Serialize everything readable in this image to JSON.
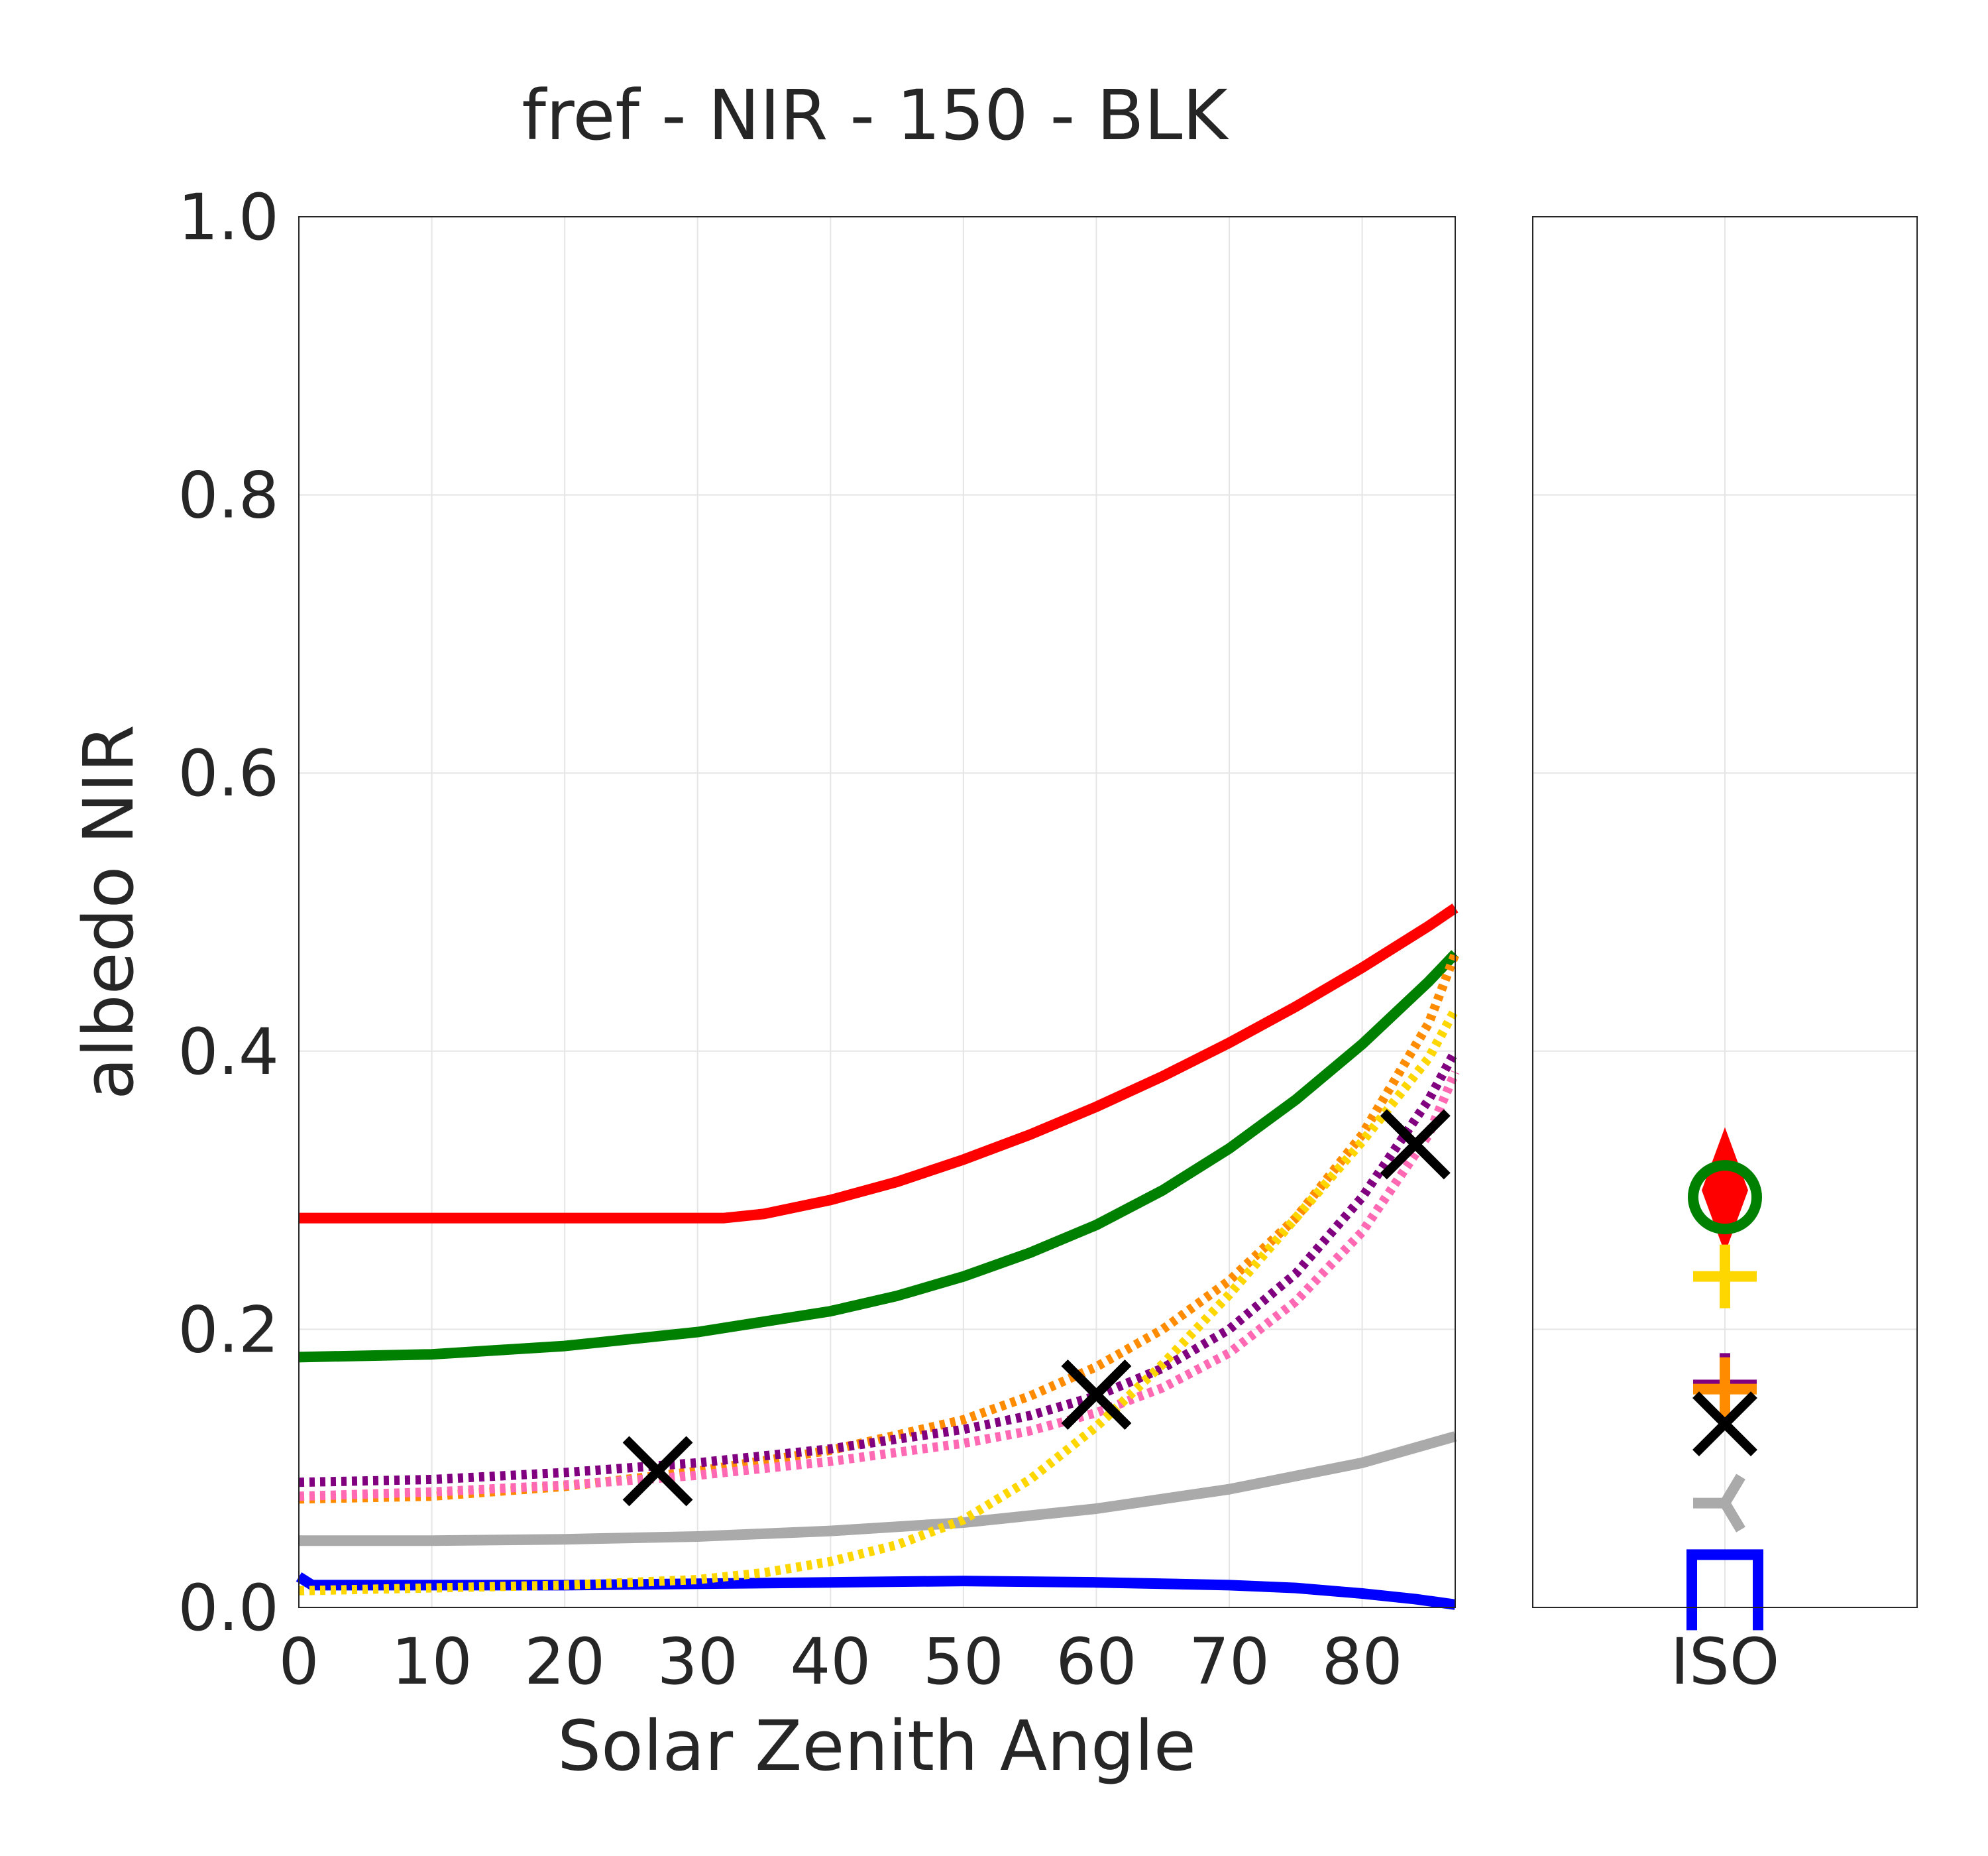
{
  "chart_data": [
    {
      "type": "line",
      "title": "fref - NIR - 150 - BLK",
      "xlabel": "Solar Zenith Angle",
      "ylabel": "albedo NIR",
      "xlim": [
        0,
        87
      ],
      "ylim": [
        0,
        1
      ],
      "xticks": [
        "0",
        "10",
        "20",
        "30",
        "40",
        "50",
        "60",
        "70",
        "80"
      ],
      "yticks": [
        "0.0",
        "0.2",
        "0.4",
        "0.6",
        "0.8",
        "1.0"
      ],
      "grid": true,
      "series": [
        {
          "color": "#ff0000",
          "style": "solid",
          "x": [
            0,
            10,
            20,
            30,
            32,
            35,
            40,
            45,
            50,
            55,
            60,
            65,
            70,
            75,
            80,
            85,
            87
          ],
          "y": [
            0.28,
            0.28,
            0.28,
            0.28,
            0.28,
            0.283,
            0.293,
            0.306,
            0.322,
            0.34,
            0.36,
            0.382,
            0.406,
            0.432,
            0.46,
            0.49,
            0.503
          ]
        },
        {
          "color": "#008000",
          "style": "solid",
          "x": [
            0,
            10,
            20,
            30,
            40,
            45,
            50,
            55,
            60,
            65,
            70,
            75,
            80,
            85,
            87
          ],
          "y": [
            0.18,
            0.182,
            0.188,
            0.198,
            0.213,
            0.224,
            0.238,
            0.255,
            0.275,
            0.3,
            0.33,
            0.365,
            0.405,
            0.45,
            0.47
          ]
        },
        {
          "color": "#aaaaaa",
          "style": "solid",
          "x": [
            0,
            10,
            20,
            30,
            40,
            50,
            60,
            70,
            80,
            87
          ],
          "y": [
            0.048,
            0.048,
            0.049,
            0.051,
            0.055,
            0.061,
            0.071,
            0.085,
            0.104,
            0.123
          ]
        },
        {
          "color": "#0000ff",
          "style": "solid",
          "x": [
            0,
            1,
            10,
            20,
            30,
            40,
            50,
            60,
            70,
            75,
            80,
            84,
            87
          ],
          "y": [
            0.022,
            0.016,
            0.016,
            0.016,
            0.017,
            0.018,
            0.019,
            0.018,
            0.016,
            0.014,
            0.01,
            0.006,
            0.002
          ]
        },
        {
          "color": "#ff8c00",
          "style": "dotted",
          "x": [
            0,
            10,
            20,
            30,
            40,
            50,
            55,
            60,
            65,
            70,
            75,
            80,
            85,
            87
          ],
          "y": [
            0.078,
            0.08,
            0.087,
            0.098,
            0.113,
            0.135,
            0.152,
            0.173,
            0.2,
            0.235,
            0.28,
            0.34,
            0.42,
            0.47
          ]
        },
        {
          "color": "#800080",
          "style": "dotted",
          "x": [
            0,
            10,
            20,
            30,
            40,
            50,
            55,
            60,
            65,
            70,
            75,
            80,
            85,
            87
          ],
          "y": [
            0.09,
            0.092,
            0.097,
            0.104,
            0.114,
            0.128,
            0.138,
            0.152,
            0.172,
            0.2,
            0.24,
            0.295,
            0.365,
            0.4
          ]
        },
        {
          "color": "#ff69b4",
          "style": "dotted",
          "x": [
            0,
            10,
            20,
            30,
            40,
            50,
            55,
            60,
            65,
            70,
            75,
            80,
            85,
            87
          ],
          "y": [
            0.08,
            0.083,
            0.088,
            0.095,
            0.105,
            0.118,
            0.127,
            0.14,
            0.158,
            0.183,
            0.22,
            0.27,
            0.34,
            0.385
          ]
        },
        {
          "color": "#ffd700",
          "style": "dotted",
          "x": [
            0,
            10,
            20,
            30,
            35,
            40,
            45,
            50,
            55,
            60,
            65,
            70,
            75,
            80,
            85,
            87
          ],
          "y": [
            0.012,
            0.014,
            0.016,
            0.02,
            0.025,
            0.033,
            0.045,
            0.063,
            0.092,
            0.13,
            0.175,
            0.225,
            0.28,
            0.335,
            0.395,
            0.43
          ]
        }
      ],
      "markers": [
        {
          "color": "#000000",
          "marker": "x",
          "x": [
            27,
            60,
            84
          ],
          "y": [
            0.098,
            0.153,
            0.333
          ]
        }
      ]
    },
    {
      "type": "scatter",
      "xticks": [
        "ISO"
      ],
      "ylim": [
        0,
        1
      ],
      "grid": true,
      "points": [
        {
          "color": "#ff0000",
          "marker": "diamond",
          "y": 0.3
        },
        {
          "color": "#008000",
          "marker": "circle",
          "y": 0.295
        },
        {
          "color": "#ffd700",
          "marker": "plus",
          "y": 0.238
        },
        {
          "color": "#800080",
          "marker": "plus",
          "y": 0.16
        },
        {
          "color": "#ff8c00",
          "marker": "plus",
          "y": 0.157
        },
        {
          "color": "#000000",
          "marker": "x",
          "y": 0.132
        },
        {
          "color": "#aaaaaa",
          "marker": "tri_left",
          "y": 0.075
        },
        {
          "color": "#0000ff",
          "marker": "square",
          "y": 0.017
        }
      ]
    }
  ]
}
